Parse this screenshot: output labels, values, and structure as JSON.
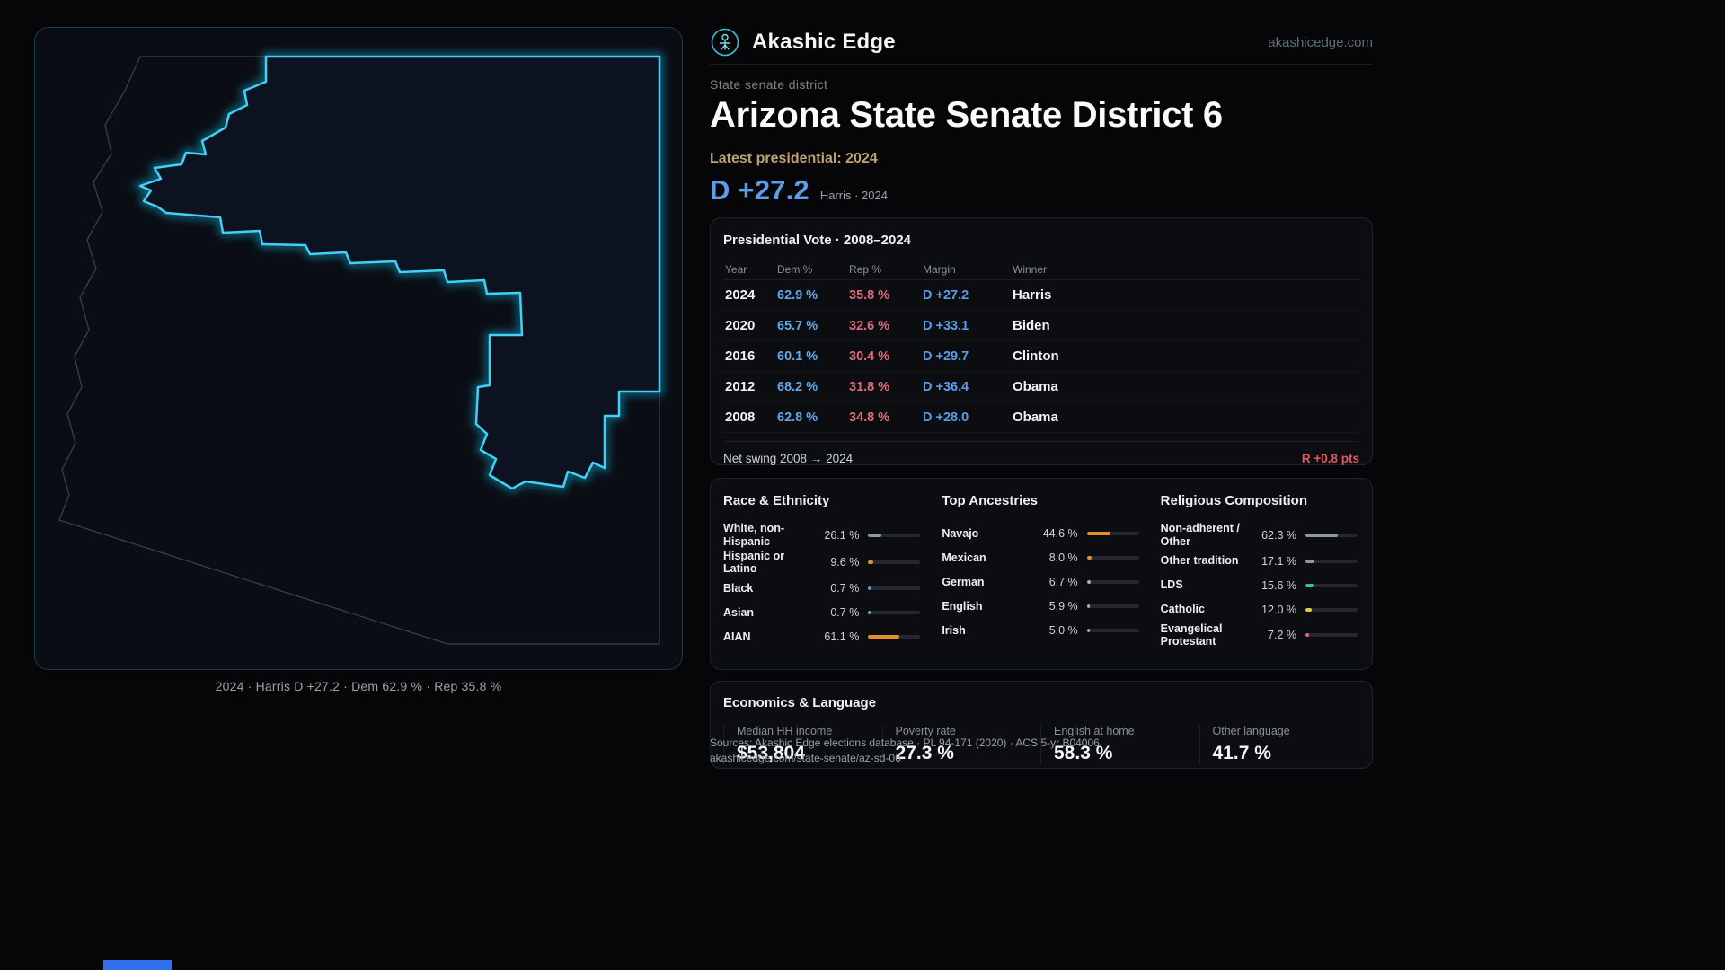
{
  "brand": {
    "name": "Akashic Edge",
    "domain": "akashicedge.com"
  },
  "header": {
    "kicker": "State senate district",
    "title": "Arizona State Senate District 6",
    "latest_label": "Latest presidential: 2024",
    "headline_margin": "D +27.2",
    "headline_caption": "Harris · 2024"
  },
  "map": {
    "caption": "2024 · Harris D +27.2 · Dem 62.9 % · Rep 35.8 %"
  },
  "presidential": {
    "title": "Presidential Vote · 2008–2024",
    "columns": [
      "Year",
      "Dem %",
      "Rep %",
      "Margin",
      "Winner"
    ],
    "rows": [
      {
        "year": "2024",
        "dem": "62.9 %",
        "rep": "35.8 %",
        "margin": "D +27.2",
        "winner": "Harris"
      },
      {
        "year": "2020",
        "dem": "65.7 %",
        "rep": "32.6 %",
        "margin": "D +33.1",
        "winner": "Biden"
      },
      {
        "year": "2016",
        "dem": "60.1 %",
        "rep": "30.4 %",
        "margin": "D +29.7",
        "winner": "Clinton"
      },
      {
        "year": "2012",
        "dem": "68.2 %",
        "rep": "31.8 %",
        "margin": "D +36.4",
        "winner": "Obama"
      },
      {
        "year": "2008",
        "dem": "62.8 %",
        "rep": "34.8 %",
        "margin": "D +28.0",
        "winner": "Obama"
      }
    ],
    "net_swing_label": "Net swing 2008 → 2024",
    "net_swing_value": "R +0.8 pts"
  },
  "race": {
    "title": "Race & Ethnicity",
    "rows": [
      {
        "label": "White, non-Hispanic",
        "value": "26.1 %",
        "pct": 26.1,
        "color": "#8e98a3"
      },
      {
        "label": "Hispanic or Latino",
        "value": "9.6 %",
        "pct": 9.6,
        "color": "#e1922f"
      },
      {
        "label": "Black",
        "value": "0.7 %",
        "pct": 0.7,
        "color": "#5b9de8"
      },
      {
        "label": "Asian",
        "value": "0.7 %",
        "pct": 0.7,
        "color": "#2fd0a8"
      },
      {
        "label": "AIAN",
        "value": "61.1 %",
        "pct": 61.1,
        "color": "#e1922f"
      }
    ]
  },
  "ancestries": {
    "title": "Top Ancestries",
    "rows": [
      {
        "label": "Navajo",
        "value": "44.6 %",
        "pct": 44.6,
        "color": "#e1922f"
      },
      {
        "label": "Mexican",
        "value": "8.0 %",
        "pct": 8.0,
        "color": "#e1922f"
      },
      {
        "label": "German",
        "value": "6.7 %",
        "pct": 6.7,
        "color": "#aab2bb"
      },
      {
        "label": "English",
        "value": "5.9 %",
        "pct": 5.9,
        "color": "#aab2bb"
      },
      {
        "label": "Irish",
        "value": "5.0 %",
        "pct": 5.0,
        "color": "#aab2bb"
      }
    ]
  },
  "religion": {
    "title": "Religious Composition",
    "rows": [
      {
        "label": "Non-adherent / Other",
        "value": "62.3 %",
        "pct": 62.3,
        "color": "#8e98a3"
      },
      {
        "label": "Other tradition",
        "value": "17.1 %",
        "pct": 17.1,
        "color": "#8e98a3"
      },
      {
        "label": "LDS",
        "value": "15.6 %",
        "pct": 15.6,
        "color": "#2cc5b2"
      },
      {
        "label": "Catholic",
        "value": "12.0 %",
        "pct": 12.0,
        "color": "#e6c84a"
      },
      {
        "label": "Evangelical Protestant",
        "value": "7.2 %",
        "pct": 7.2,
        "color": "#e0697a"
      }
    ]
  },
  "economics": {
    "title": "Economics & Language",
    "stats": [
      {
        "label": "Median HH income",
        "value": "$53,804"
      },
      {
        "label": "Poverty rate",
        "value": "27.3 %"
      },
      {
        "label": "English at home",
        "value": "58.3 %"
      },
      {
        "label": "Other language",
        "value": "41.7 %"
      }
    ]
  },
  "footer": {
    "sources": "Sources: Akashic Edge elections database · PL 94-171 (2020) · ACS 5-yr B04006",
    "permalink": "akashicedge.com/state-senate/az-sd-06"
  },
  "colors": {
    "dem_blue": "#5b9de8",
    "rep_red": "#e0697a",
    "district_stroke": "#3fd2f5",
    "accent_tan": "#bfa273"
  }
}
